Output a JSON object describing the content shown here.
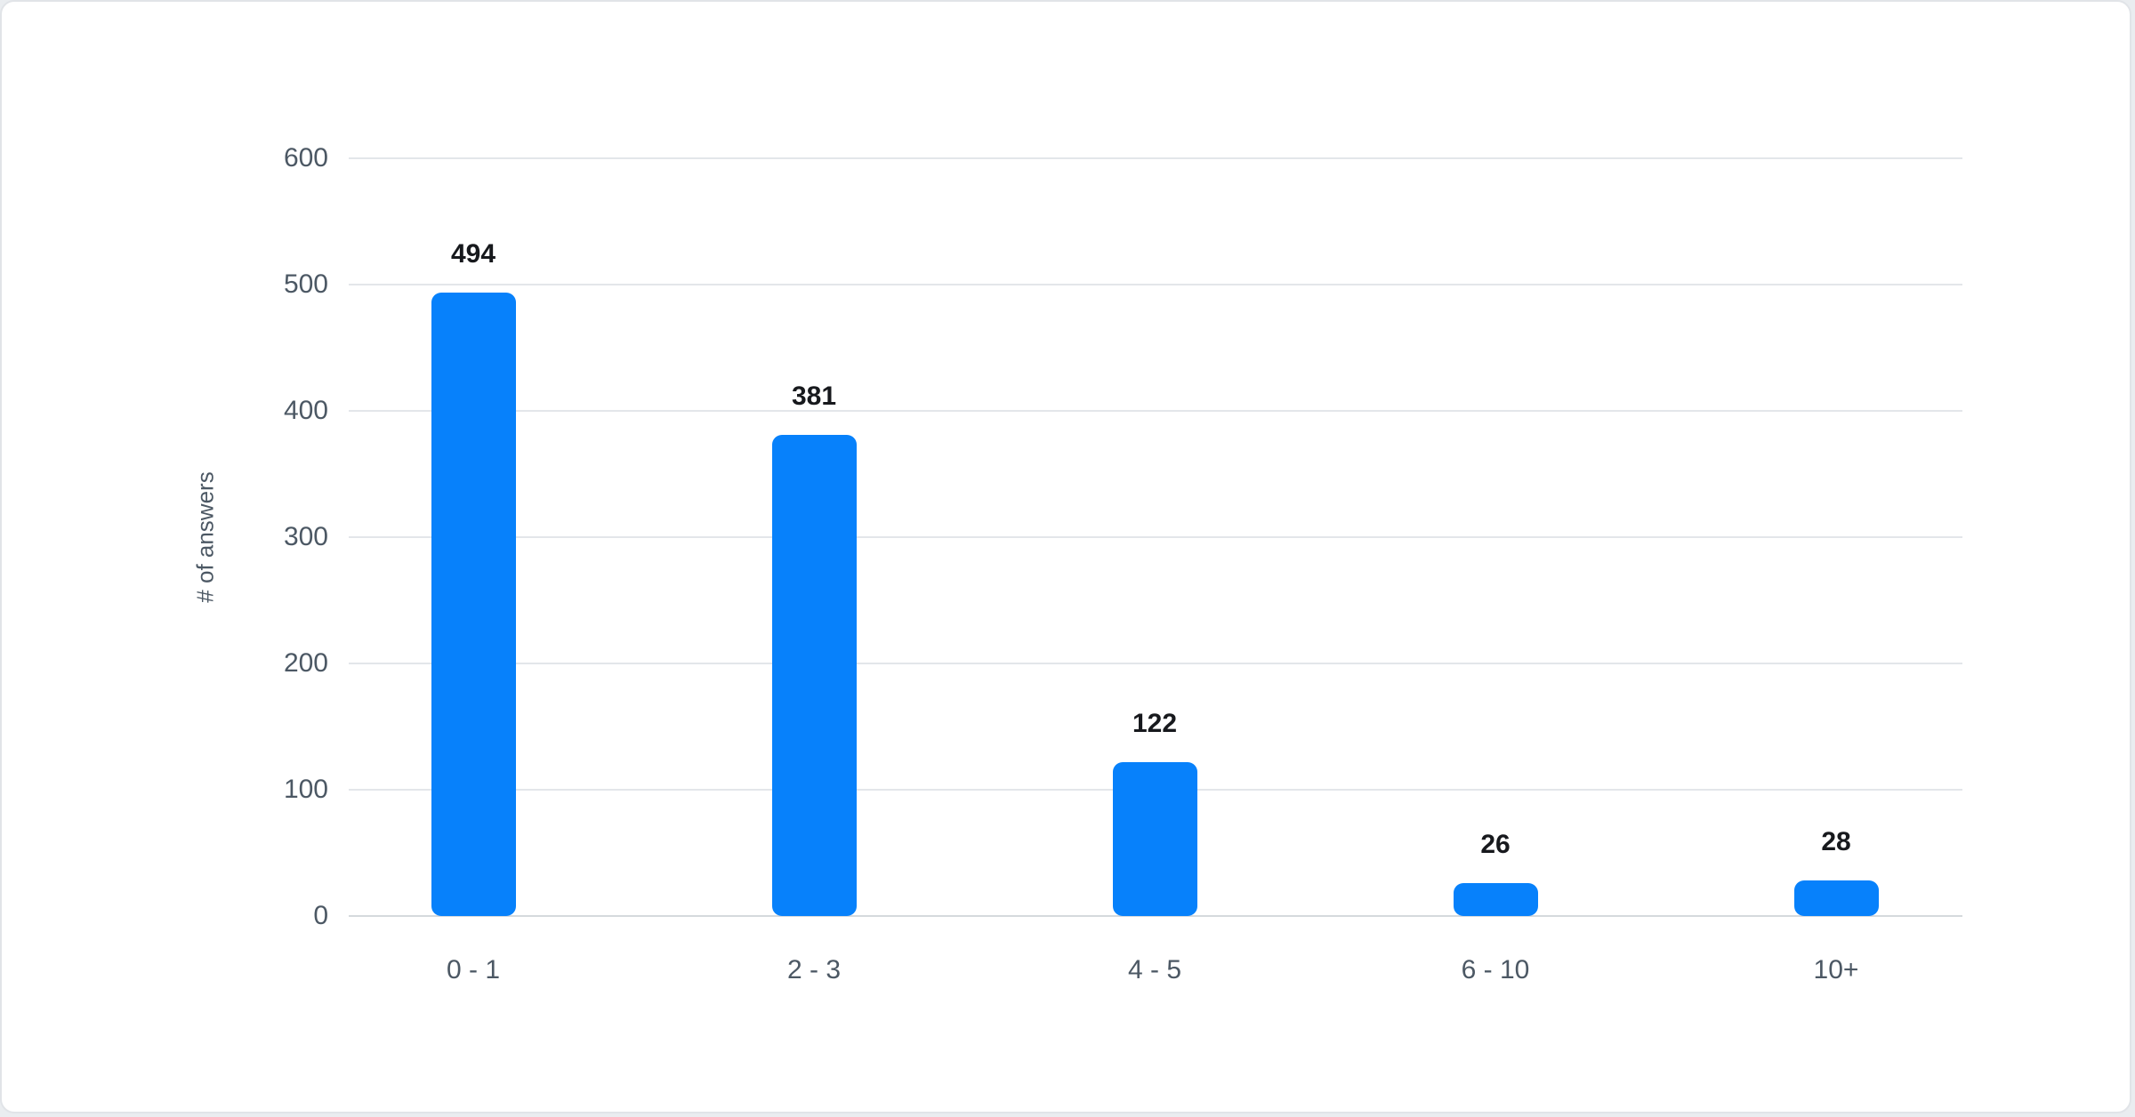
{
  "chart_data": {
    "type": "bar",
    "categories": [
      "0 - 1",
      "2 - 3",
      "4 - 5",
      "6 - 10",
      "10+"
    ],
    "values": [
      494,
      381,
      122,
      26,
      28
    ],
    "title": "",
    "xlabel": "",
    "ylabel": "# of answers",
    "ylim": [
      0,
      600
    ],
    "yticks": [
      0,
      100,
      200,
      300,
      400,
      500,
      600
    ],
    "grid": true,
    "legend_position": "none",
    "colors": {
      "bar": "#0781fb",
      "value_label": "#17191d",
      "axis_text": "#4c5864",
      "gridline": "#e3e6ea",
      "baseline": "#d5d9dd",
      "card_background": "#ffffff",
      "page_background": "#eaedf0"
    }
  }
}
